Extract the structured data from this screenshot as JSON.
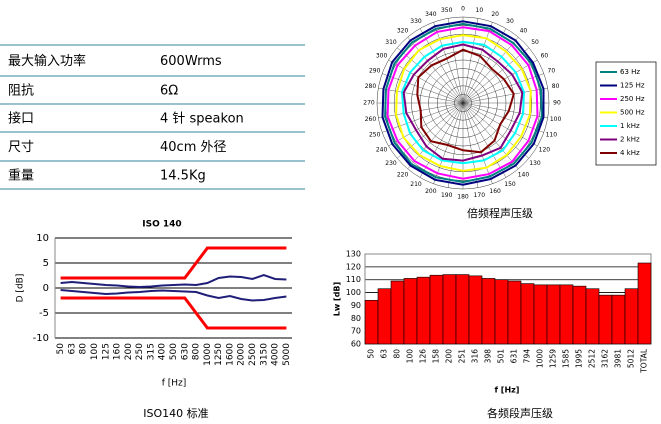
{
  "table": {
    "rows": [
      [
        "最大输入功率",
        "600Wrms"
      ],
      [
        "阻抗",
        "6Ω"
      ],
      [
        "接口",
        "4 针 speakon"
      ],
      [
        "尺寸",
        "40cm 外径"
      ],
      [
        "重量",
        "14.5Kg"
      ]
    ]
  },
  "chart_data": [
    {
      "type": "polar",
      "caption": "倍频程声压级",
      "theta": [
        0,
        20,
        40,
        60,
        80,
        100,
        120,
        140,
        160,
        180,
        200,
        220,
        240,
        260,
        280,
        300,
        320,
        340
      ],
      "thetaticks": [
        0,
        10,
        20,
        30,
        40,
        50,
        60,
        70,
        80,
        90,
        100,
        110,
        120,
        130,
        140,
        150,
        160,
        170,
        180,
        190,
        200,
        210,
        220,
        230,
        240,
        250,
        260,
        270,
        280,
        290,
        300,
        310,
        320,
        330,
        340,
        350
      ],
      "rlim": [
        0,
        100
      ],
      "rticks": [
        10,
        20,
        30,
        40,
        50,
        60,
        70,
        80,
        90,
        100
      ],
      "series": [
        {
          "name": "63 Hz",
          "color": "#008080",
          "values": [
            92,
            92,
            91,
            92,
            92,
            93,
            92,
            92,
            91,
            92,
            92,
            93,
            92,
            92,
            91,
            92,
            92,
            92
          ]
        },
        {
          "name": "125 Hz",
          "color": "#000080",
          "values": [
            95,
            95,
            95,
            94,
            95,
            95,
            95,
            95,
            94,
            95,
            95,
            95,
            95,
            95,
            94,
            95,
            95,
            95
          ]
        },
        {
          "name": "250 Hz",
          "color": "#ff00ff",
          "values": [
            88,
            89,
            88,
            88,
            87,
            88,
            88,
            89,
            88,
            88,
            87,
            88,
            88,
            89,
            88,
            88,
            87,
            88
          ]
        },
        {
          "name": "500 Hz",
          "color": "#ffff00",
          "values": [
            79,
            80,
            78,
            79,
            80,
            79,
            78,
            79,
            80,
            79,
            78,
            79,
            80,
            79,
            78,
            79,
            80,
            79
          ]
        },
        {
          "name": "1 kHz",
          "color": "#00ffff",
          "values": [
            71,
            72,
            70,
            71,
            72,
            71,
            70,
            72,
            71,
            70,
            71,
            72,
            71,
            70,
            72,
            71,
            70,
            71
          ]
        },
        {
          "name": "2 kHz",
          "color": "#800080",
          "values": [
            68,
            66,
            63,
            66,
            70,
            67,
            64,
            68,
            65,
            67,
            69,
            66,
            63,
            67,
            70,
            66,
            64,
            67
          ]
        },
        {
          "name": "4 kHz",
          "color": "#800000",
          "values": [
            62,
            58,
            52,
            55,
            60,
            54,
            50,
            57,
            61,
            55,
            52,
            58,
            56,
            50,
            54,
            60,
            57,
            55
          ]
        }
      ]
    },
    {
      "type": "line",
      "title": "ISO 140",
      "y_label": "D [dB]",
      "x_label": "f [Hz]",
      "caption": "ISO140 标准",
      "categories": [
        "50",
        "63",
        "80",
        "100",
        "125",
        "160",
        "200",
        "250",
        "315",
        "400",
        "500",
        "630",
        "800",
        "1000",
        "1250",
        "1600",
        "2000",
        "2500",
        "3150",
        "4000",
        "5000"
      ],
      "ylim": [
        -10,
        10
      ],
      "yticks": [
        -10,
        -5,
        0,
        5,
        10
      ],
      "grid": true,
      "series": [
        {
          "color": "#ff0000",
          "values": [
            2,
            2,
            2,
            2,
            2,
            2,
            2,
            2,
            2,
            2,
            2,
            2,
            5,
            8,
            8,
            8,
            8,
            8,
            8,
            8,
            8
          ]
        },
        {
          "color": "#ff0000",
          "values": [
            -2,
            -2,
            -2,
            -2,
            -2,
            -2,
            -2,
            -2,
            -2,
            -2,
            -2,
            -2,
            -5,
            -8,
            -8,
            -8,
            -8,
            -8,
            -8,
            -8,
            -8
          ]
        },
        {
          "color": "#1f1f7a",
          "values": [
            1,
            1.2,
            1,
            0.8,
            0.6,
            0.5,
            0.3,
            0.2,
            0.3,
            0.5,
            0.6,
            0.7,
            0.6,
            1,
            2,
            2.3,
            2.2,
            1.8,
            2.6,
            1.8,
            1.7
          ]
        },
        {
          "color": "#1f1f7a",
          "values": [
            -0.4,
            -0.6,
            -0.8,
            -1,
            -1.2,
            -1.1,
            -0.9,
            -0.8,
            -0.6,
            -0.5,
            -0.6,
            -0.7,
            -0.8,
            -1.5,
            -2,
            -1.6,
            -2.2,
            -2.5,
            -2.4,
            -2,
            -1.7
          ]
        }
      ]
    },
    {
      "type": "bar",
      "y_label": "Lw [dB]",
      "x_label": "f [Hz]",
      "caption": "各频段声压级",
      "color": "#ff0000",
      "categories": [
        "50",
        "63",
        "80",
        "100",
        "126",
        "158",
        "200",
        "251",
        "316",
        "398",
        "501",
        "631",
        "794",
        "1000",
        "1259",
        "1585",
        "1995",
        "2512",
        "3162",
        "3981",
        "5012",
        "TOTAL"
      ],
      "values": [
        94,
        103,
        109,
        111,
        112,
        113.5,
        114,
        114,
        113,
        111,
        110,
        109,
        107,
        106,
        106,
        106,
        105,
        103,
        98,
        98,
        103,
        123
      ],
      "ylim": [
        60,
        130
      ],
      "yticks": [
        60,
        70,
        80,
        90,
        100,
        110,
        120,
        130
      ],
      "grid": true
    }
  ]
}
